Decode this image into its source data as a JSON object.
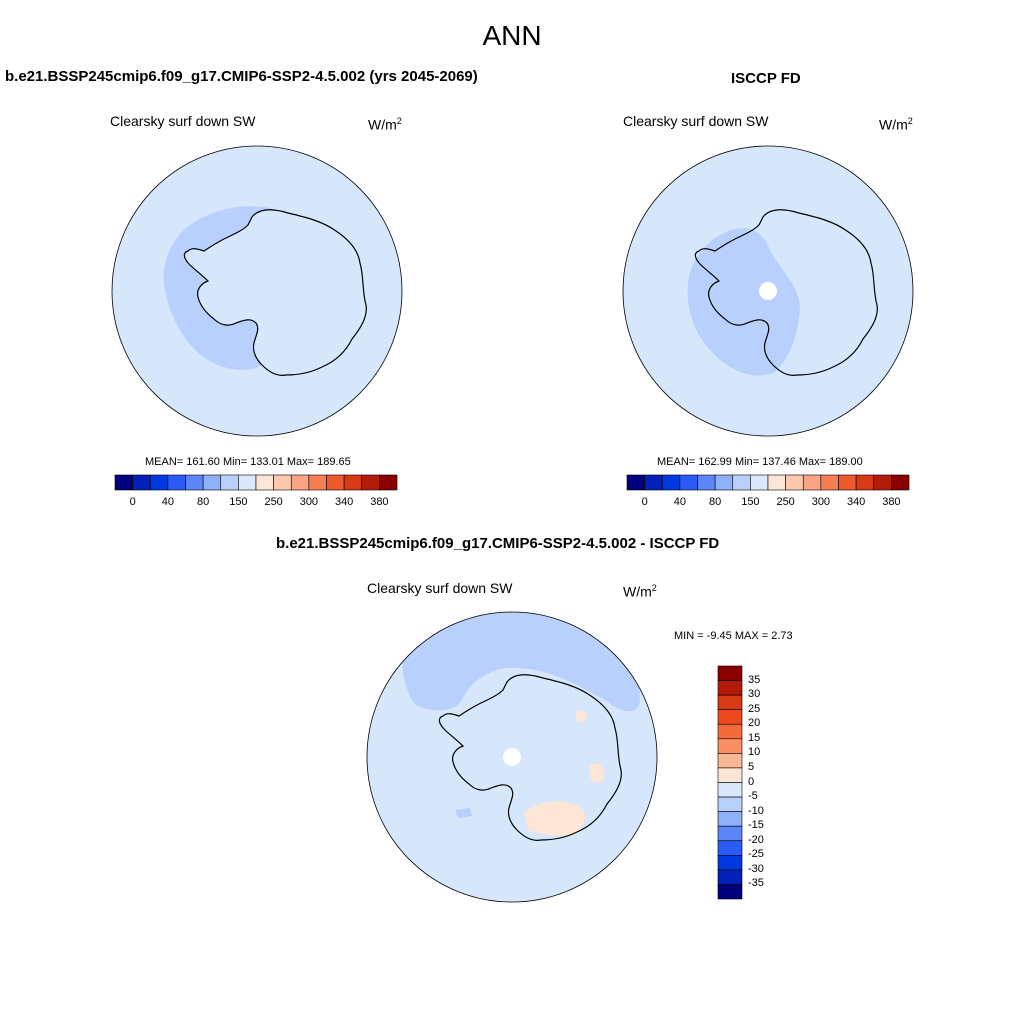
{
  "main_title": "ANN",
  "panels": [
    {
      "title": "b.e21.BSSP245cmip6.f09_g17.CMIP6-SSP2-4.5.002 (yrs 2045-2069)",
      "subtitle": "Clearsky surf down SW",
      "units": "W/m",
      "units_sup": "2",
      "stats": "MEAN= 161.60  Min= 133.01  Max= 189.65"
    },
    {
      "title": "ISCCP FD",
      "subtitle": "Clearsky surf down SW",
      "units": "W/m",
      "units_sup": "2",
      "stats": "MEAN= 162.99  Min= 137.46  Max= 189.00"
    },
    {
      "title": "b.e21.BSSP245cmip6.f09_g17.CMIP6-SSP2-4.5.002 - ISCCP FD",
      "subtitle": "Clearsky surf down SW",
      "units": "W/m",
      "units_sup": "2",
      "stats": "MIN =  -9.45 MAX =   2.73"
    }
  ],
  "colorbar_top": {
    "labels": [
      "0",
      "40",
      "80",
      "150",
      "250",
      "300",
      "340",
      "380"
    ],
    "colors": [
      "#00007f",
      "#0020b8",
      "#0038e0",
      "#2a5cf5",
      "#5c86f7",
      "#8eb0f9",
      "#b8d0fb",
      "#dbe8fc",
      "#fde6d6",
      "#fcc9ad",
      "#f9a482",
      "#f57f55",
      "#ec5a2c",
      "#d83a14",
      "#b31b08",
      "#8a0000"
    ]
  },
  "colorbar_diff": {
    "labels": [
      "35",
      "30",
      "25",
      "20",
      "15",
      "10",
      "5",
      "0",
      "-5",
      "-10",
      "-15",
      "-20",
      "-25",
      "-30",
      "-35"
    ],
    "colors": [
      "#8a0000",
      "#b31b08",
      "#d83a14",
      "#ec4a1c",
      "#f56a3a",
      "#f98e64",
      "#fcb894",
      "#fde6d6",
      "#dbe8fc",
      "#b8d0fb",
      "#8eb0f9",
      "#5c86f7",
      "#2a5cf5",
      "#0038e0",
      "#0020b8",
      "#00007f"
    ]
  },
  "colors": {
    "ocean_light": "#d6e7fc",
    "ocean_mid": "#b8d0fb",
    "positive_light": "#fde6d6"
  }
}
